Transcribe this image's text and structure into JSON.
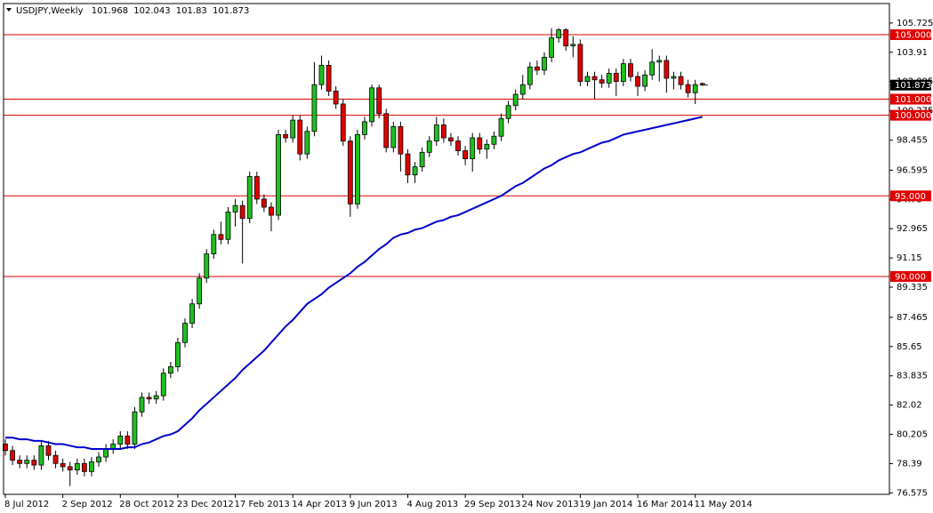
{
  "chart_data": {
    "type": "candlestick",
    "symbol": "USDJPY,Weekly",
    "categories": [
      "8 Jul 2012",
      null,
      null,
      null,
      null,
      null,
      null,
      null,
      "2 Sep 2012",
      null,
      null,
      null,
      null,
      null,
      null,
      null,
      "28 Oct 2012",
      null,
      null,
      null,
      null,
      null,
      null,
      null,
      "23 Dec 2012",
      null,
      null,
      null,
      null,
      null,
      null,
      null,
      "17 Feb 2013",
      null,
      null,
      null,
      null,
      null,
      null,
      null,
      "14 Apr 2013",
      null,
      null,
      null,
      null,
      null,
      null,
      null,
      "9 Jun 2013",
      null,
      null,
      null,
      null,
      null,
      null,
      null,
      "4 Aug 2013",
      null,
      null,
      null,
      null,
      null,
      null,
      null,
      "29 Sep 2013",
      null,
      null,
      null,
      null,
      null,
      null,
      null,
      "24 Nov 2013",
      null,
      null,
      null,
      null,
      null,
      null,
      null,
      "19 Jan 2014",
      null,
      null,
      null,
      null,
      null,
      null,
      null,
      "16 Mar 2014",
      null,
      null,
      null,
      null,
      null,
      null,
      null,
      "11 May 2014",
      null
    ],
    "open": [
      79.6,
      79.2,
      78.6,
      78.4,
      78.6,
      78.3,
      79.5,
      78.9,
      78.4,
      78.2,
      78.0,
      78.4,
      77.9,
      78.5,
      78.8,
      79.3,
      79.6,
      80.1,
      79.6,
      81.6,
      82.5,
      82.4,
      82.6,
      84.0,
      84.4,
      85.9,
      87.1,
      88.3,
      89.9,
      91.4,
      92.6,
      92.3,
      94.0,
      94.4,
      93.6,
      96.2,
      94.8,
      94.3,
      93.8,
      98.8,
      98.6,
      99.7,
      97.6,
      99.0,
      101.9,
      103.1,
      101.5,
      100.7,
      98.4,
      94.5,
      98.8,
      99.6,
      101.7,
      100.1,
      98.0,
      99.3,
      97.6,
      96.3,
      96.8,
      97.7,
      98.4,
      99.4,
      98.6,
      98.4,
      97.8,
      97.3,
      98.6,
      97.9,
      98.2,
      98.7,
      99.8,
      100.6,
      101.3,
      101.9,
      103.0,
      102.8,
      103.6,
      104.8,
      105.3,
      104.3,
      104.4,
      102.1,
      102.4,
      102.2,
      102.0,
      102.6,
      102.1,
      103.2,
      102.4,
      101.8,
      102.5,
      103.3,
      103.4,
      102.3,
      102.4,
      101.9,
      101.4,
      101.968
    ],
    "high": [
      79.9,
      79.5,
      78.9,
      78.9,
      78.9,
      79.8,
      79.8,
      79.2,
      78.7,
      78.5,
      78.7,
      78.7,
      78.8,
      79.1,
      79.6,
      79.9,
      80.4,
      80.4,
      81.9,
      82.8,
      82.8,
      82.9,
      84.3,
      84.7,
      86.2,
      87.4,
      88.6,
      90.2,
      91.7,
      92.9,
      93.4,
      94.3,
      94.8,
      94.7,
      96.5,
      96.5,
      95.1,
      94.6,
      99.1,
      99.1,
      100.0,
      100.0,
      99.3,
      103.3,
      103.7,
      103.4,
      101.8,
      101.0,
      98.7,
      99.1,
      99.9,
      101.9,
      101.9,
      100.4,
      99.6,
      99.6,
      97.9,
      97.1,
      98.0,
      98.7,
      99.9,
      99.8,
      98.9,
      98.7,
      98.1,
      98.9,
      98.9,
      98.5,
      99.0,
      100.1,
      100.9,
      101.6,
      102.5,
      103.3,
      103.4,
      103.9,
      105.4,
      105.4,
      105.4,
      104.9,
      104.7,
      102.7,
      102.7,
      102.5,
      102.9,
      102.9,
      103.5,
      103.5,
      102.7,
      102.8,
      104.1,
      103.7,
      103.7,
      102.7,
      102.7,
      102.2,
      102.2,
      102.043
    ],
    "low": [
      78.9,
      78.3,
      78.1,
      78.1,
      78.0,
      78.0,
      78.6,
      78.1,
      77.9,
      77.0,
      77.7,
      77.6,
      77.6,
      78.2,
      78.5,
      79.0,
      79.3,
      79.3,
      79.3,
      81.3,
      82.1,
      82.1,
      82.3,
      83.7,
      84.1,
      85.6,
      86.8,
      88.0,
      89.6,
      91.1,
      92.0,
      92.0,
      93.1,
      90.8,
      93.3,
      94.5,
      94.0,
      92.8,
      93.5,
      98.3,
      98.3,
      97.2,
      97.3,
      98.7,
      101.6,
      101.2,
      100.4,
      98.1,
      93.7,
      94.2,
      98.5,
      99.3,
      99.8,
      97.7,
      97.7,
      96.5,
      95.8,
      95.8,
      96.5,
      97.4,
      98.1,
      98.3,
      98.1,
      97.5,
      96.9,
      96.5,
      97.6,
      97.3,
      97.9,
      98.4,
      99.5,
      100.3,
      101.0,
      101.6,
      102.5,
      102.5,
      103.3,
      104.5,
      104.0,
      103.6,
      101.8,
      101.8,
      101.0,
      101.7,
      101.7,
      101.2,
      101.8,
      102.1,
      101.2,
      101.5,
      102.2,
      102.1,
      101.4,
      101.6,
      101.6,
      101.1,
      100.7,
      101.83
    ],
    "close": [
      79.2,
      78.6,
      78.4,
      78.6,
      78.3,
      79.5,
      78.9,
      78.4,
      78.2,
      78.0,
      78.4,
      77.9,
      78.5,
      78.8,
      79.3,
      79.6,
      80.1,
      79.6,
      81.6,
      82.5,
      82.4,
      82.6,
      84.0,
      84.4,
      85.9,
      87.1,
      88.3,
      89.9,
      91.4,
      92.6,
      92.3,
      94.0,
      94.4,
      93.6,
      96.2,
      94.8,
      94.3,
      93.8,
      98.8,
      98.6,
      99.7,
      97.6,
      99.0,
      101.9,
      103.1,
      101.5,
      100.7,
      98.4,
      94.5,
      98.8,
      99.6,
      101.7,
      100.1,
      98.0,
      99.3,
      97.6,
      96.3,
      96.8,
      97.7,
      98.4,
      99.4,
      98.6,
      98.4,
      97.8,
      97.3,
      98.6,
      97.9,
      98.2,
      98.7,
      99.8,
      100.6,
      101.3,
      101.9,
      103.0,
      102.8,
      103.6,
      104.8,
      105.3,
      104.3,
      104.4,
      102.1,
      102.4,
      102.2,
      102.0,
      102.6,
      102.1,
      103.2,
      102.4,
      101.8,
      102.5,
      103.3,
      103.4,
      102.3,
      102.4,
      101.9,
      101.4,
      101.9,
      101.873
    ],
    "bull_color": "#1fc01f",
    "bear_color": "#e00000",
    "moving_average": {
      "color": "#0000cc",
      "values": [
        80.0,
        80.0,
        79.9,
        79.9,
        79.8,
        79.8,
        79.7,
        79.6,
        79.6,
        79.5,
        79.4,
        79.4,
        79.3,
        79.3,
        79.3,
        79.3,
        79.3,
        79.4,
        79.4,
        79.6,
        79.7,
        79.9,
        80.1,
        80.2,
        80.4,
        80.8,
        81.2,
        81.7,
        82.1,
        82.5,
        82.9,
        83.3,
        83.7,
        84.2,
        84.6,
        85.0,
        85.4,
        85.9,
        86.4,
        86.9,
        87.3,
        87.8,
        88.3,
        88.6,
        88.9,
        89.3,
        89.6,
        89.9,
        90.2,
        90.6,
        90.9,
        91.3,
        91.7,
        92.0,
        92.4,
        92.6,
        92.7,
        92.9,
        93.0,
        93.2,
        93.4,
        93.5,
        93.7,
        93.8,
        94.0,
        94.2,
        94.4,
        94.6,
        94.8,
        95.0,
        95.3,
        95.6,
        95.8,
        96.1,
        96.4,
        96.7,
        96.9,
        97.2,
        97.4,
        97.6,
        97.7,
        97.9,
        98.1,
        98.3,
        98.4,
        98.6,
        98.8,
        98.9,
        99.0,
        99.1,
        99.2,
        99.3,
        99.4,
        99.5,
        99.6,
        99.7,
        99.8,
        99.9
      ]
    },
    "levels": [
      {
        "value": 105,
        "label": "105.000"
      },
      {
        "value": 101,
        "label": "101.000"
      },
      {
        "value": 100,
        "label": "100.000"
      },
      {
        "value": 95,
        "label": "95.000"
      },
      {
        "value": 90,
        "label": "90.000"
      }
    ],
    "level_color": "#e00000",
    "ylim": [
      76.54,
      106.875
    ],
    "yticks": [
      105.725,
      103.91,
      102.095,
      100.275,
      98.455,
      96.595,
      94.78,
      92.965,
      91.15,
      89.335,
      87.465,
      85.65,
      83.835,
      82.02,
      80.205,
      78.39,
      76.575
    ]
  }
}
